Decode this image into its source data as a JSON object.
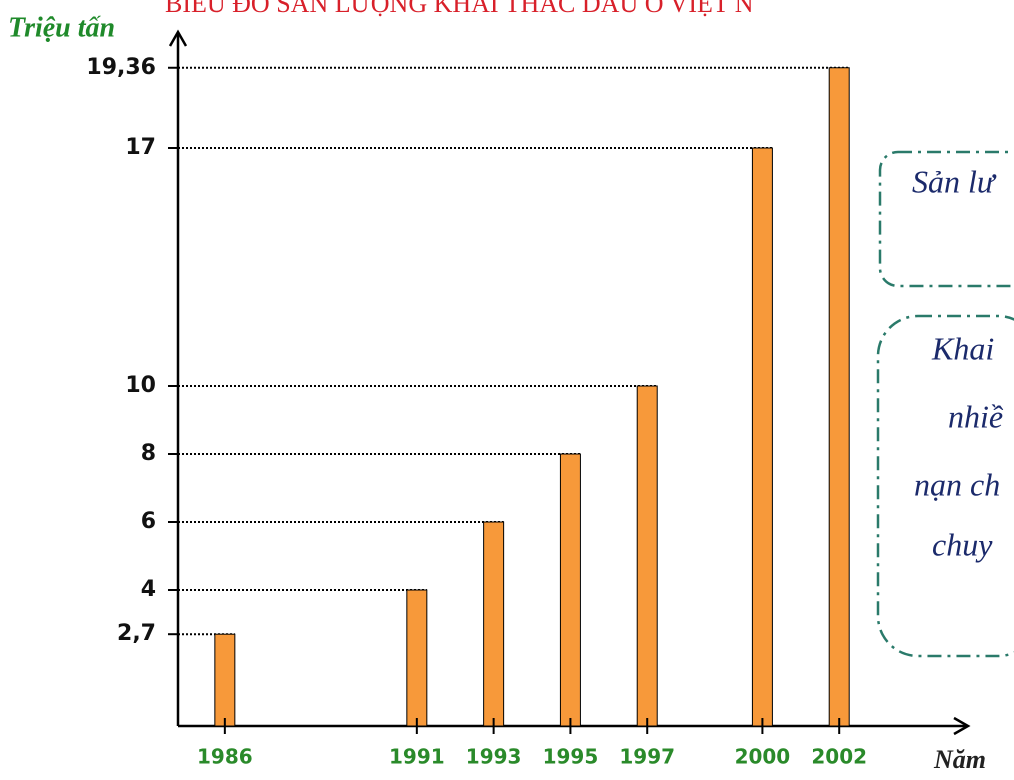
{
  "chart_data": {
    "type": "bar",
    "title": "BIỂU ĐỒ SẢN LƯỢNG KHAI THÁC DẦU Ở VIỆT N",
    "y_label": "Triệu tấn",
    "x_label": "Năm",
    "x": [
      1986,
      1991,
      1993,
      1995,
      1997,
      2000,
      2002
    ],
    "values": [
      2.7,
      4,
      6,
      8,
      10,
      17,
      19.36
    ],
    "color": "#f7993a",
    "xlim": [
      1984.78,
      2004
    ],
    "ylim": [
      0,
      20
    ],
    "yticks": [
      {
        "value": 2.7,
        "label": "2,7"
      },
      4,
      6,
      8,
      10,
      17,
      {
        "value": 19.36,
        "label": "19,36"
      }
    ],
    "grid": true,
    "annotations": [
      "Sản lư",
      "Khai",
      "nhiề",
      "nạn ch",
      "chuy"
    ]
  }
}
